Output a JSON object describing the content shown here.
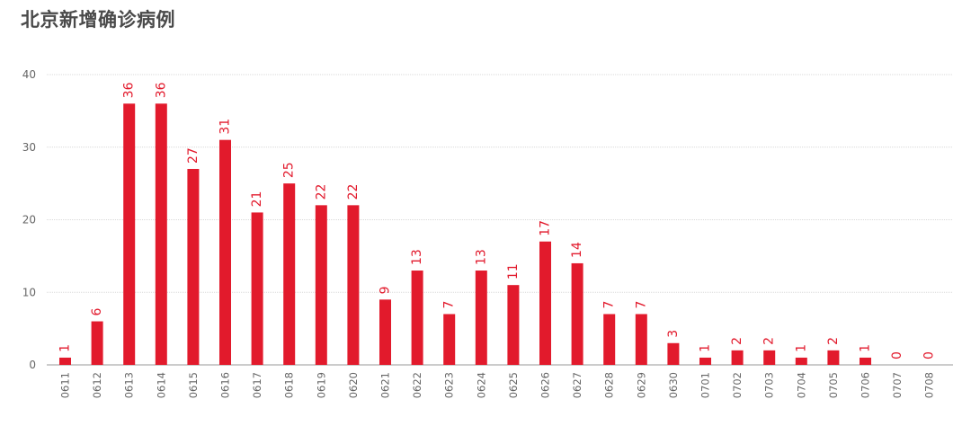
{
  "title": "北京新增确诊病例",
  "chart_data": {
    "type": "bar",
    "title": "北京新增确诊病例",
    "xlabel": "",
    "ylabel": "",
    "ylim": [
      0,
      40
    ],
    "yticks": [
      0,
      10,
      20,
      30,
      40
    ],
    "grid": true,
    "bar_color": "#e21a2c",
    "categories": [
      "0611",
      "0612",
      "0613",
      "0614",
      "0615",
      "0616",
      "0617",
      "0618",
      "0619",
      "0620",
      "0621",
      "0622",
      "0623",
      "0624",
      "0625",
      "0626",
      "0627",
      "0628",
      "0629",
      "0630",
      "0701",
      "0702",
      "0703",
      "0704",
      "0705",
      "0706",
      "0707",
      "0708"
    ],
    "values": [
      1,
      6,
      36,
      36,
      27,
      31,
      21,
      25,
      22,
      22,
      9,
      13,
      7,
      13,
      11,
      17,
      14,
      7,
      7,
      3,
      1,
      2,
      2,
      1,
      2,
      1,
      0,
      0
    ]
  }
}
